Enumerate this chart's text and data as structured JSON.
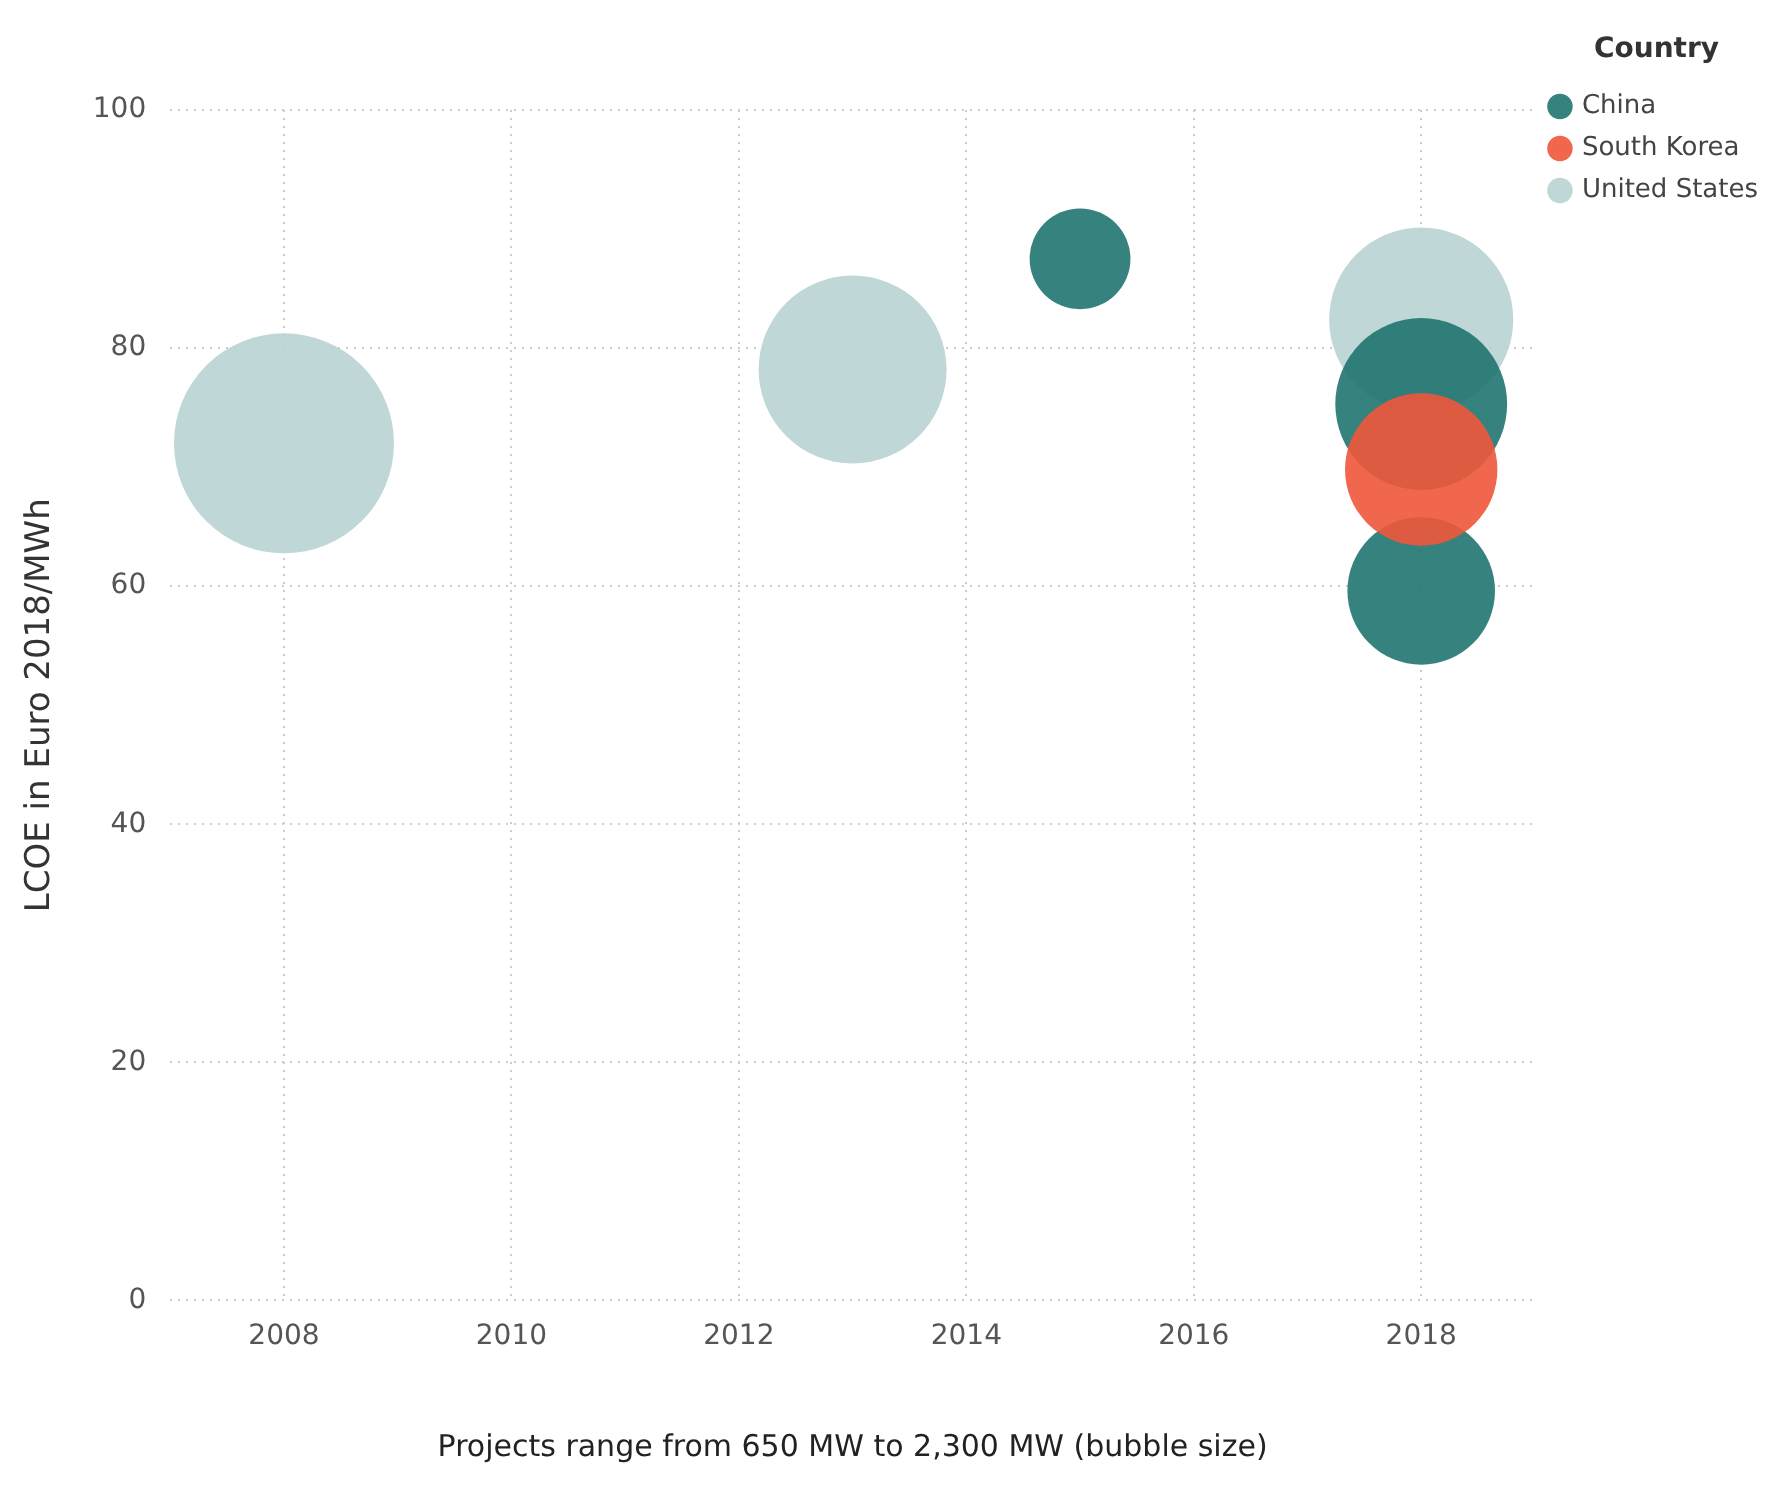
{
  "chart_data": {
    "type": "bubble",
    "ylabel": "LCOE in Euro 2018/MWh",
    "xlabel": "Projects range from 650 MW to 2,300 MW (bubble size)",
    "legend_title": "Country",
    "legend": "top right",
    "grid": true,
    "marker": "circle",
    "xlim": [
      2007,
      2019
    ],
    "xticks": [
      2008,
      2010,
      2012,
      2014,
      2016,
      2018
    ],
    "ylim": [
      0,
      100
    ],
    "yticks": [
      0,
      20,
      40,
      60,
      80,
      100
    ],
    "series": [
      {
        "name": "China",
        "color": "#1f7470",
        "x": [
          2015,
          2018,
          2018
        ],
        "values": [
          87.5,
          75.3,
          59.6
        ],
        "sizes": [
          0.21,
          0.61,
          0.45
        ]
      },
      {
        "name": "South Korea",
        "color": "#f0573b",
        "x": [
          2018
        ],
        "values": [
          69.8
        ],
        "sizes": [
          0.48
        ]
      },
      {
        "name": "United States",
        "color": "#b9d3d3",
        "x": [
          2008,
          2013,
          2018
        ],
        "values": [
          72,
          78.2,
          82.4
        ],
        "sizes": [
          1,
          0.73,
          0.7
        ]
      }
    ]
  }
}
